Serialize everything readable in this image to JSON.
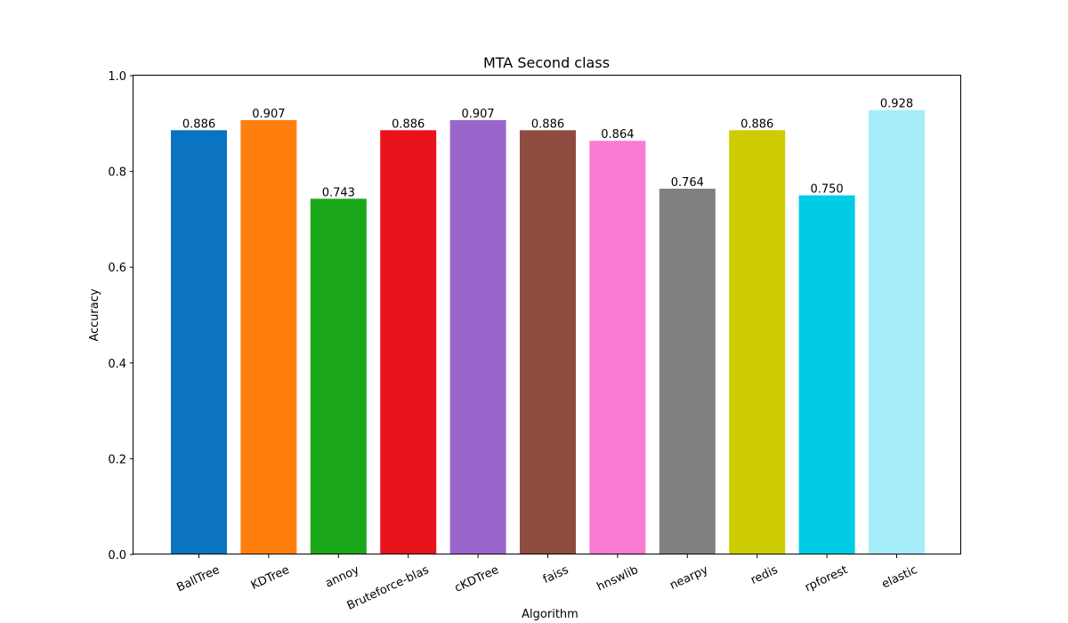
{
  "chart_data": {
    "type": "bar",
    "title": "MTA Second class",
    "xlabel": "Algorithm",
    "ylabel": "Accuracy",
    "ylim": [
      0,
      1.0
    ],
    "yticks": [
      "0.0",
      "0.2",
      "0.4",
      "0.6",
      "0.8",
      "1.0"
    ],
    "grid": false,
    "legend": "none",
    "categories": [
      "BallTree",
      "KDTree",
      "annoy",
      "Bruteforce-blas",
      "cKDTree",
      "faiss",
      "hnswlib",
      "nearpy",
      "redis",
      "rpforest",
      "elastic"
    ],
    "values": [
      0.886,
      0.907,
      0.743,
      0.886,
      0.907,
      0.886,
      0.864,
      0.764,
      0.886,
      0.75,
      0.928
    ],
    "value_labels": [
      "0.886",
      "0.907",
      "0.743",
      "0.886",
      "0.907",
      "0.886",
      "0.864",
      "0.764",
      "0.886",
      "0.750",
      "0.928"
    ],
    "colors": [
      "#0a73c2",
      "#ff7f0e",
      "#1aa81a",
      "#e8131b",
      "#9b66cc",
      "#8c4d40",
      "#fa7bd4",
      "#808080",
      "#cccc00",
      "#00cce5",
      "#a6eefa"
    ]
  }
}
